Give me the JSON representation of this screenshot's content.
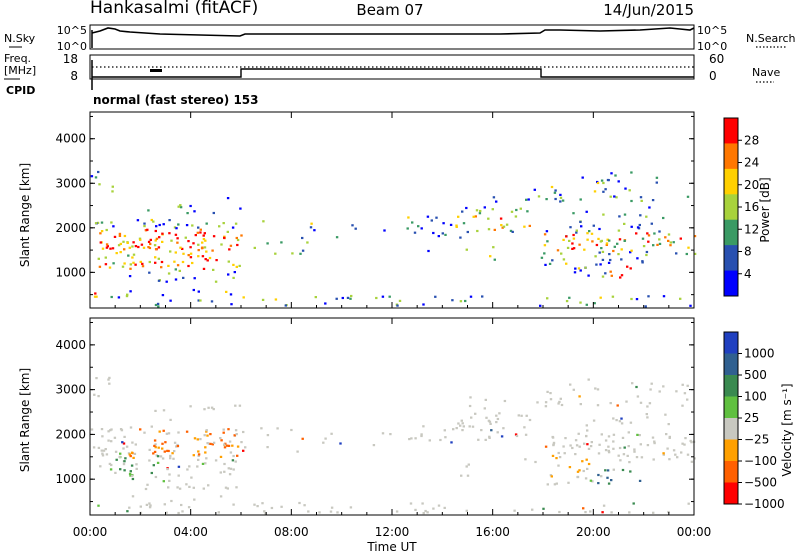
{
  "header": {
    "title": "Hankasalmi (fitACF)",
    "beam": "Beam 07",
    "date": "14/Jun/2015"
  },
  "sky_panel": {
    "left_label": "N.Sky",
    "left_ticks": [
      "10^5",
      "10^0"
    ],
    "right_ticks": [
      "10^5",
      "10^0"
    ],
    "right_label": "N.Search"
  },
  "freq_panel": {
    "left_label_1": "Freq.",
    "left_label_2": "[MHz]",
    "cpid_label": "CPID",
    "left_ticks": [
      "18",
      "8"
    ],
    "right_ticks": [
      "60",
      "0"
    ],
    "right_label": "Nave",
    "mode_text": "normal (fast stereo) 153"
  },
  "chart_data": [
    {
      "type": "heatmap",
      "name": "power",
      "ylabel": "Slant Range [km]",
      "y_ticks": [
        "4000",
        "3000",
        "2000",
        "1000"
      ],
      "ylim": [
        200,
        4600
      ],
      "colorbar_label": "Power [dB]",
      "colorbar_ticks": [
        "28",
        "24",
        "20",
        "16",
        "12",
        "8",
        "4"
      ],
      "colorbar_colors": [
        "#ff0000",
        "#ff7700",
        "#ffd000",
        "#a8d23c",
        "#3a9a64",
        "#2850b0",
        "#0000ff"
      ]
    },
    {
      "type": "heatmap",
      "name": "velocity",
      "ylabel": "Slant Range [km]",
      "y_ticks": [
        "4000",
        "3000",
        "2000",
        "1000"
      ],
      "ylim": [
        200,
        4600
      ],
      "colorbar_label": "Velocity [m s⁻¹]",
      "colorbar_ticks": [
        "1000",
        "500",
        "100",
        "25",
        "−25",
        "−100",
        "−500",
        "−1000"
      ],
      "colorbar_colors": [
        "#2040c0",
        "#306090",
        "#3a8a50",
        "#60c040",
        "#c8c8c0",
        "#ffa000",
        "#ff6000",
        "#ff0000"
      ]
    }
  ],
  "x_axis": {
    "ticks": [
      "00:00",
      "04:00",
      "08:00",
      "12:00",
      "16:00",
      "20:00",
      "00:00"
    ],
    "label": "Time UT"
  }
}
